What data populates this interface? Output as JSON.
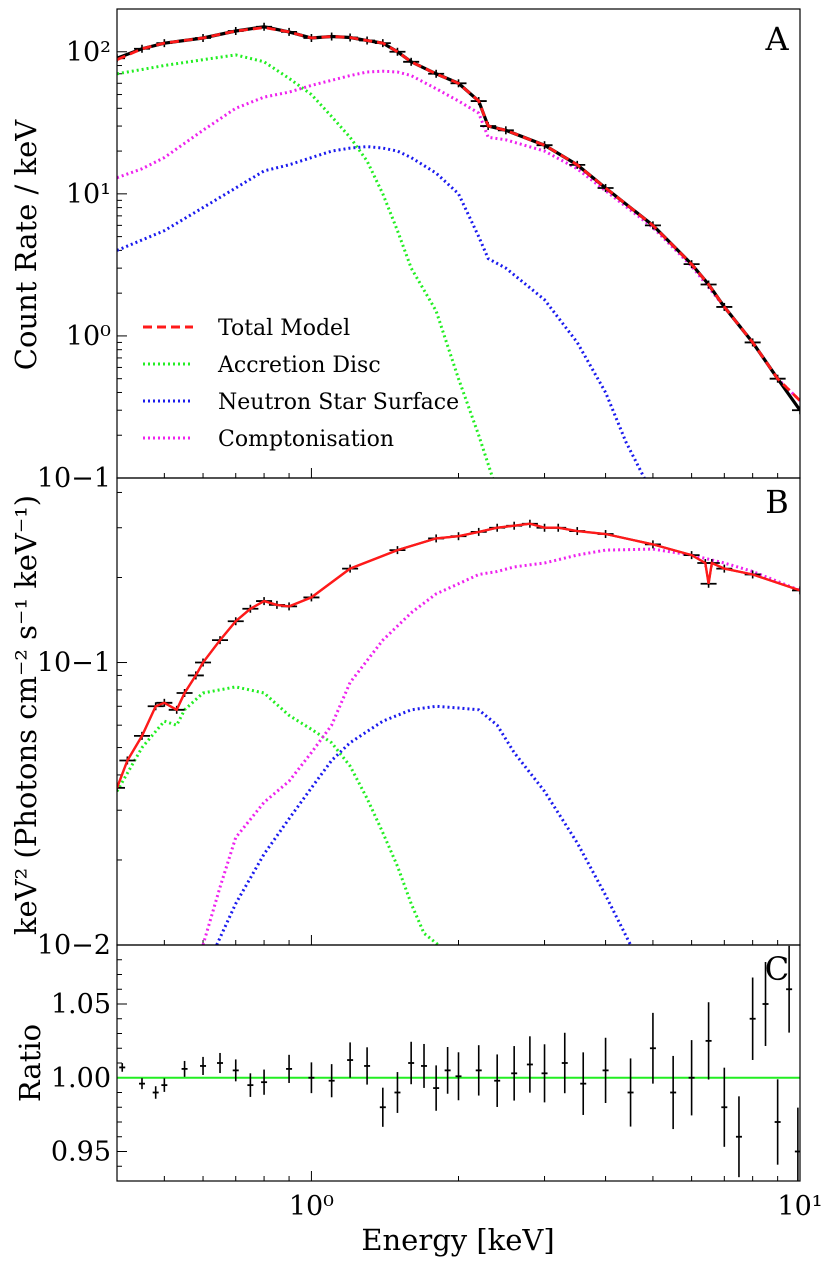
{
  "chart_data": [
    {
      "panel": "A",
      "type": "line",
      "xscale": "log",
      "yscale": "log",
      "xlim": [
        0.4,
        10
      ],
      "ylim": [
        0.1,
        200
      ],
      "ylabel": "Count Rate / keV",
      "yticks": [
        {
          "value": 0.1,
          "label": "10−1"
        },
        {
          "value": 1,
          "label": "10⁰"
        },
        {
          "value": 10,
          "label": "10¹"
        },
        {
          "value": 100,
          "label": "10²"
        }
      ],
      "legend": {
        "placement": "lower-left",
        "entries": [
          "Total Model",
          "Accretion Disc",
          "Neutron Star Surface",
          "Comptonisation"
        ]
      },
      "series": [
        {
          "name": "Data",
          "color": "#000000",
          "style": "errorbar",
          "x": [
            0.4,
            0.45,
            0.5,
            0.6,
            0.7,
            0.8,
            0.9,
            1.0,
            1.1,
            1.2,
            1.3,
            1.4,
            1.5,
            1.6,
            1.8,
            2.0,
            2.2,
            2.3,
            2.5,
            3.0,
            3.5,
            4.0,
            5.0,
            6.0,
            6.5,
            7.0,
            8.0,
            9.0,
            10.0
          ],
          "y": [
            90,
            105,
            115,
            125,
            140,
            150,
            138,
            125,
            128,
            126,
            120,
            115,
            100,
            85,
            70,
            60,
            45,
            30,
            28,
            22,
            16,
            11,
            6,
            3.2,
            2.3,
            1.6,
            0.9,
            0.5,
            0.3
          ]
        },
        {
          "name": "Total Model",
          "color": "#ff1a1a",
          "style": "dashed",
          "x": [
            0.4,
            0.45,
            0.5,
            0.6,
            0.7,
            0.8,
            0.9,
            1.0,
            1.1,
            1.2,
            1.3,
            1.4,
            1.5,
            1.6,
            1.8,
            2.0,
            2.2,
            2.3,
            2.5,
            3.0,
            3.5,
            4.0,
            5.0,
            6.0,
            6.5,
            7.0,
            8.0,
            9.0,
            10.0
          ],
          "y": [
            88,
            105,
            115,
            125,
            140,
            148,
            138,
            125,
            128,
            126,
            120,
            115,
            100,
            85,
            70,
            60,
            45,
            30,
            28,
            22,
            16,
            11,
            6,
            3.2,
            2.3,
            1.6,
            0.9,
            0.5,
            0.35
          ]
        },
        {
          "name": "Accretion Disc",
          "color": "#22ee22",
          "style": "dotted",
          "x": [
            0.4,
            0.45,
            0.5,
            0.6,
            0.7,
            0.8,
            0.9,
            1.0,
            1.1,
            1.2,
            1.3,
            1.4,
            1.5,
            1.6,
            1.8,
            2.0,
            2.2,
            2.35
          ],
          "y": [
            70,
            75,
            80,
            88,
            95,
            85,
            65,
            50,
            35,
            25,
            17,
            10,
            5.5,
            3.0,
            1.5,
            0.5,
            0.2,
            0.1
          ]
        },
        {
          "name": "Neutron Star Surface",
          "color": "#1a1aee",
          "style": "dotted",
          "x": [
            0.4,
            0.5,
            0.6,
            0.7,
            0.8,
            0.9,
            1.0,
            1.1,
            1.2,
            1.3,
            1.4,
            1.5,
            1.6,
            1.8,
            2.0,
            2.2,
            2.3,
            2.5,
            3.0,
            3.5,
            4.0,
            4.4,
            4.8
          ],
          "y": [
            4,
            5.5,
            8,
            11,
            14.5,
            16,
            18,
            20,
            21,
            21.5,
            21,
            20,
            18,
            14,
            10,
            5,
            3.5,
            3,
            1.8,
            0.9,
            0.4,
            0.18,
            0.1
          ]
        },
        {
          "name": "Comptonisation",
          "color": "#ee22ee",
          "style": "dotted",
          "x": [
            0.4,
            0.45,
            0.5,
            0.6,
            0.7,
            0.8,
            0.9,
            1.0,
            1.1,
            1.2,
            1.3,
            1.4,
            1.5,
            1.6,
            1.8,
            2.0,
            2.2,
            2.3,
            2.5,
            3.0,
            3.5,
            4.0,
            5.0,
            6.0,
            6.5,
            7.0,
            8.0,
            9.0,
            10.0
          ],
          "y": [
            13,
            15,
            18,
            28,
            40,
            48,
            52,
            58,
            63,
            68,
            72,
            73,
            72,
            68,
            55,
            45,
            37,
            25,
            24,
            20,
            15,
            10.5,
            5.8,
            3.1,
            2.2,
            1.6,
            0.9,
            0.5,
            0.35
          ]
        }
      ]
    },
    {
      "panel": "B",
      "type": "line",
      "xscale": "log",
      "yscale": "log",
      "xlim": [
        0.4,
        10
      ],
      "ylim": [
        0.01,
        0.45
      ],
      "ylabel": "keV² (Photons cm⁻² s⁻¹ keV⁻¹)",
      "yticks": [
        {
          "value": 0.01,
          "label": "10−2"
        },
        {
          "value": 0.1,
          "label": "10−1"
        }
      ],
      "series": [
        {
          "name": "Data",
          "color": "#000000",
          "style": "errorbar",
          "x": [
            0.4,
            0.42,
            0.45,
            0.48,
            0.5,
            0.53,
            0.55,
            0.58,
            0.6,
            0.65,
            0.7,
            0.75,
            0.8,
            0.85,
            0.9,
            1.0,
            1.2,
            1.5,
            1.8,
            2.0,
            2.2,
            2.4,
            2.6,
            2.8,
            3.0,
            3.2,
            3.5,
            4.0,
            5.0,
            6.0,
            6.4,
            6.5,
            6.6,
            7.0,
            8.0,
            10.0
          ],
          "y": [
            0.036,
            0.045,
            0.055,
            0.07,
            0.072,
            0.068,
            0.078,
            0.09,
            0.1,
            0.12,
            0.14,
            0.155,
            0.165,
            0.16,
            0.158,
            0.17,
            0.215,
            0.25,
            0.275,
            0.28,
            0.29,
            0.3,
            0.305,
            0.31,
            0.3,
            0.3,
            0.292,
            0.285,
            0.262,
            0.24,
            0.225,
            0.19,
            0.225,
            0.215,
            0.205,
            0.18
          ]
        },
        {
          "name": "Total Model",
          "color": "#ff1a1a",
          "style": "solid",
          "x": [
            0.4,
            0.42,
            0.45,
            0.48,
            0.5,
            0.53,
            0.55,
            0.58,
            0.6,
            0.65,
            0.7,
            0.75,
            0.8,
            0.85,
            0.9,
            1.0,
            1.2,
            1.5,
            1.8,
            2.0,
            2.2,
            2.4,
            2.6,
            2.8,
            3.0,
            3.2,
            3.5,
            4.0,
            5.0,
            6.0,
            6.4,
            6.5,
            6.6,
            7.0,
            8.0,
            10.0
          ],
          "y": [
            0.036,
            0.045,
            0.055,
            0.07,
            0.072,
            0.068,
            0.078,
            0.09,
            0.1,
            0.12,
            0.14,
            0.155,
            0.165,
            0.16,
            0.158,
            0.17,
            0.215,
            0.25,
            0.275,
            0.28,
            0.29,
            0.3,
            0.305,
            0.31,
            0.3,
            0.3,
            0.292,
            0.285,
            0.262,
            0.24,
            0.225,
            0.19,
            0.225,
            0.215,
            0.205,
            0.18
          ]
        },
        {
          "name": "Accretion Disc",
          "color": "#22ee22",
          "style": "dotted",
          "x": [
            0.4,
            0.45,
            0.5,
            0.53,
            0.55,
            0.6,
            0.7,
            0.8,
            0.9,
            1.0,
            1.1,
            1.2,
            1.3,
            1.4,
            1.5,
            1.6,
            1.7,
            1.82
          ],
          "y": [
            0.035,
            0.05,
            0.062,
            0.06,
            0.068,
            0.078,
            0.082,
            0.078,
            0.065,
            0.058,
            0.052,
            0.043,
            0.033,
            0.025,
            0.019,
            0.014,
            0.011,
            0.01
          ]
        },
        {
          "name": "Neutron Star Surface",
          "color": "#1a1aee",
          "style": "dotted",
          "x": [
            0.64,
            0.7,
            0.8,
            0.9,
            1.0,
            1.1,
            1.2,
            1.4,
            1.6,
            1.8,
            2.0,
            2.2,
            2.4,
            2.6,
            3.0,
            3.5,
            4.0,
            4.5
          ],
          "y": [
            0.01,
            0.014,
            0.021,
            0.028,
            0.036,
            0.045,
            0.052,
            0.062,
            0.068,
            0.07,
            0.069,
            0.068,
            0.06,
            0.048,
            0.035,
            0.023,
            0.015,
            0.01
          ]
        },
        {
          "name": "Comptonisation",
          "color": "#ee22ee",
          "style": "dotted",
          "x": [
            0.6,
            0.65,
            0.7,
            0.8,
            0.9,
            1.0,
            1.1,
            1.2,
            1.4,
            1.6,
            1.8,
            2.0,
            2.2,
            2.4,
            2.6,
            3.0,
            3.5,
            4.0,
            5.0,
            6.0,
            7.0,
            8.0,
            10.0
          ],
          "y": [
            0.01,
            0.016,
            0.024,
            0.032,
            0.038,
            0.048,
            0.06,
            0.085,
            0.12,
            0.15,
            0.175,
            0.19,
            0.205,
            0.21,
            0.218,
            0.225,
            0.24,
            0.25,
            0.252,
            0.24,
            0.225,
            0.21,
            0.18
          ]
        }
      ]
    },
    {
      "panel": "C",
      "type": "line",
      "xscale": "log",
      "yscale": "linear",
      "xlim": [
        0.4,
        10
      ],
      "ylim": [
        0.93,
        1.09
      ],
      "xlabel": "Energy [keV]",
      "ylabel": "Ratio",
      "xticks": [
        {
          "value": 1,
          "label": "10⁰"
        },
        {
          "value": 10,
          "label": "10¹"
        }
      ],
      "yticks": [
        {
          "value": 0.95,
          "label": "0.95"
        },
        {
          "value": 1.0,
          "label": "1.00"
        },
        {
          "value": 1.05,
          "label": "1.05"
        }
      ],
      "reference_line": {
        "y": 1.0,
        "color": "#22ee22"
      },
      "series": [
        {
          "name": "Ratio",
          "color": "#000000",
          "style": "errorbar",
          "x": [
            0.41,
            0.45,
            0.48,
            0.5,
            0.55,
            0.6,
            0.65,
            0.7,
            0.75,
            0.8,
            0.9,
            1.0,
            1.1,
            1.2,
            1.3,
            1.4,
            1.5,
            1.6,
            1.7,
            1.8,
            1.9,
            2.0,
            2.2,
            2.4,
            2.6,
            2.8,
            3.0,
            3.3,
            3.6,
            4.0,
            4.5,
            5.0,
            5.5,
            6.0,
            6.5,
            7.0,
            7.5,
            8.0,
            8.5,
            9.0,
            9.5,
            9.9
          ],
          "y": [
            1.007,
            0.996,
            0.99,
            0.995,
            1.006,
            1.008,
            1.01,
            1.005,
            0.995,
            0.997,
            1.006,
            1.0,
            0.998,
            1.012,
            1.008,
            0.98,
            0.99,
            1.01,
            1.008,
            0.993,
            1.005,
            1.001,
            1.005,
            0.998,
            1.003,
            1.009,
            1.003,
            1.01,
            0.996,
            1.005,
            0.99,
            1.02,
            0.99,
            1.0,
            1.025,
            0.98,
            0.96,
            1.04,
            1.05,
            0.97,
            1.06,
            0.95
          ]
        }
      ]
    }
  ]
}
